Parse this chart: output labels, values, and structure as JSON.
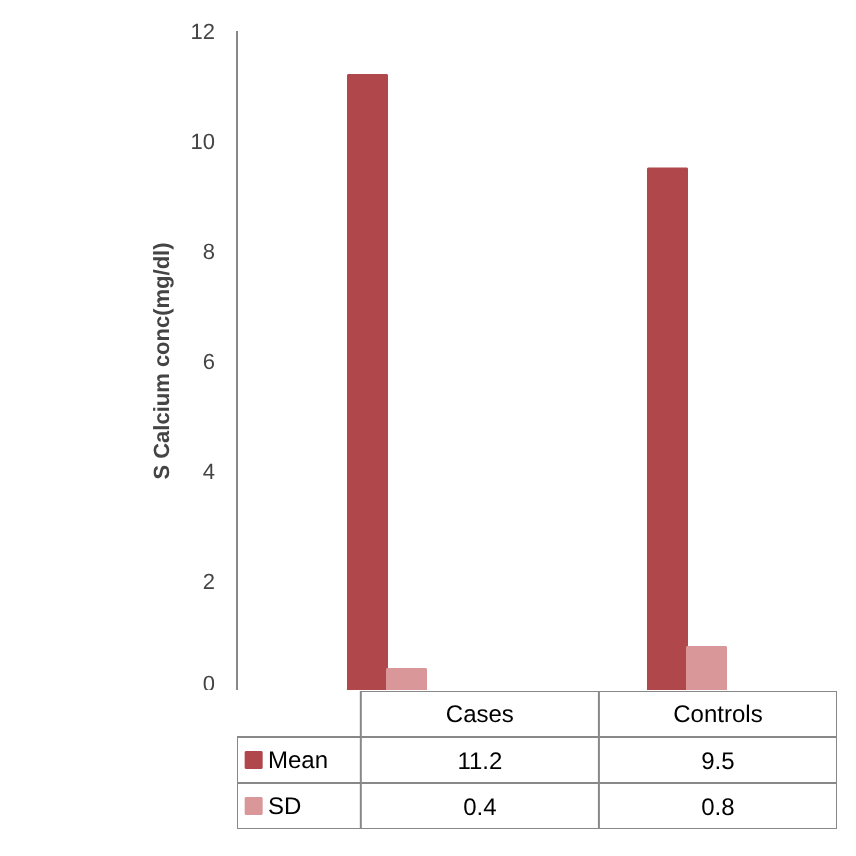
{
  "chart_data": {
    "type": "bar",
    "ylabel": "S Calcium conc(mg/dl)",
    "categories": [
      "Cases",
      "Controls"
    ],
    "series": [
      {
        "name": "Mean",
        "color": "#b0474a",
        "values": [
          11.2,
          9.5
        ]
      },
      {
        "name": "SD",
        "color": "#d9979a",
        "values": [
          0.4,
          0.8
        ]
      }
    ],
    "ylim": [
      0,
      12
    ],
    "yticks": [
      0,
      2,
      4,
      6,
      8,
      10,
      12
    ],
    "grid": false,
    "legend": "bottom",
    "data_labels": true
  }
}
